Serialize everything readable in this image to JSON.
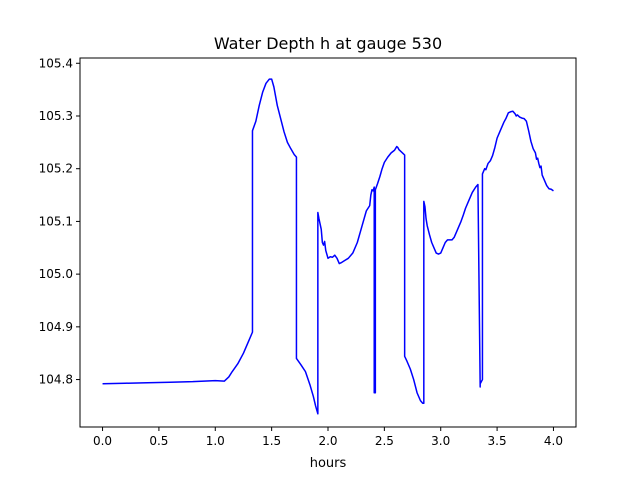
{
  "chart_data": {
    "type": "line",
    "title": "Water Depth h at gauge 530",
    "xlabel": "hours",
    "ylabel": "",
    "xlim": [
      -0.2,
      4.2
    ],
    "ylim": [
      104.71,
      105.41
    ],
    "xticks": [
      0.0,
      0.5,
      1.0,
      1.5,
      2.0,
      2.5,
      3.0,
      3.5,
      4.0
    ],
    "xtick_labels": [
      "0.0",
      "0.5",
      "1.0",
      "1.5",
      "2.0",
      "2.5",
      "3.0",
      "3.5",
      "4.0"
    ],
    "yticks": [
      104.8,
      104.9,
      105.0,
      105.1,
      105.2,
      105.3,
      105.4
    ],
    "ytick_labels": [
      "104.8",
      "104.9",
      "105.0",
      "105.1",
      "105.2",
      "105.3",
      "105.4"
    ],
    "grid": false,
    "series": [
      {
        "color": "#0000ff",
        "x": [
          0.0,
          0.2,
          0.4,
          0.6,
          0.8,
          1.0,
          1.08,
          1.12,
          1.15,
          1.2,
          1.25,
          1.3,
          1.33,
          1.33,
          1.36,
          1.39,
          1.42,
          1.45,
          1.48,
          1.5,
          1.52,
          1.55,
          1.58,
          1.61,
          1.64,
          1.67,
          1.7,
          1.72,
          1.72,
          1.76,
          1.8,
          1.84,
          1.87,
          1.89,
          1.91,
          1.91,
          1.92,
          1.93,
          1.94,
          1.95,
          1.96,
          1.97,
          1.98,
          2.0,
          2.02,
          2.04,
          2.06,
          2.08,
          2.1,
          2.12,
          2.15,
          2.18,
          2.22,
          2.26,
          2.3,
          2.34,
          2.37,
          2.38,
          2.39,
          2.4,
          2.41,
          2.41,
          2.42,
          2.42,
          2.44,
          2.46,
          2.48,
          2.5,
          2.53,
          2.56,
          2.59,
          2.61,
          2.62,
          2.63,
          2.65,
          2.67,
          2.68,
          2.68,
          2.7,
          2.73,
          2.76,
          2.79,
          2.82,
          2.84,
          2.85,
          2.85,
          2.86,
          2.87,
          2.88,
          2.9,
          2.92,
          2.94,
          2.96,
          2.98,
          3.0,
          3.02,
          3.04,
          3.06,
          3.08,
          3.1,
          3.12,
          3.14,
          3.16,
          3.18,
          3.2,
          3.22,
          3.25,
          3.28,
          3.31,
          3.33,
          3.35,
          3.35,
          3.37,
          3.37,
          3.38,
          3.39,
          3.4,
          3.42,
          3.44,
          3.46,
          3.48,
          3.5,
          3.53,
          3.56,
          3.58,
          3.6,
          3.62,
          3.64,
          3.66,
          3.67,
          3.68,
          3.7,
          3.72,
          3.74,
          3.76,
          3.78,
          3.8,
          3.82,
          3.84,
          3.85,
          3.86,
          3.87,
          3.88,
          3.89,
          3.9,
          3.92,
          3.94,
          3.96,
          3.98,
          4.0
        ],
        "y": [
          104.792,
          104.793,
          104.794,
          104.795,
          104.796,
          104.798,
          104.797,
          104.805,
          104.815,
          104.83,
          104.85,
          104.875,
          104.89,
          105.272,
          105.29,
          105.32,
          105.345,
          105.362,
          105.37,
          105.37,
          105.355,
          105.32,
          105.295,
          105.27,
          105.25,
          105.238,
          105.227,
          105.222,
          104.84,
          104.828,
          104.815,
          104.79,
          104.768,
          104.75,
          104.735,
          105.117,
          105.105,
          105.095,
          105.085,
          105.06,
          105.055,
          105.062,
          105.045,
          105.03,
          105.033,
          105.032,
          105.036,
          105.03,
          105.02,
          105.022,
          105.026,
          105.03,
          105.04,
          105.06,
          105.09,
          105.12,
          105.13,
          105.15,
          105.16,
          105.158,
          105.165,
          104.775,
          104.775,
          105.16,
          105.172,
          105.185,
          105.2,
          105.212,
          105.222,
          105.23,
          105.235,
          105.242,
          105.24,
          105.236,
          105.232,
          105.228,
          105.226,
          104.844,
          104.835,
          104.82,
          104.8,
          104.775,
          104.76,
          104.755,
          104.755,
          105.138,
          105.128,
          105.105,
          105.092,
          105.075,
          105.06,
          105.05,
          105.04,
          105.038,
          105.04,
          105.05,
          105.06,
          105.065,
          105.065,
          105.065,
          105.07,
          105.08,
          105.09,
          105.1,
          105.112,
          105.125,
          105.14,
          105.155,
          105.165,
          105.17,
          104.786,
          104.792,
          104.8,
          105.19,
          105.195,
          105.2,
          105.198,
          105.21,
          105.215,
          105.225,
          105.24,
          105.258,
          105.273,
          105.288,
          105.296,
          105.306,
          105.308,
          105.309,
          105.304,
          105.3,
          105.302,
          105.298,
          105.296,
          105.295,
          105.29,
          105.272,
          105.252,
          105.238,
          105.23,
          105.218,
          105.22,
          105.21,
          105.202,
          105.205,
          105.188,
          105.178,
          105.168,
          105.162,
          105.161,
          105.158
        ]
      }
    ]
  }
}
